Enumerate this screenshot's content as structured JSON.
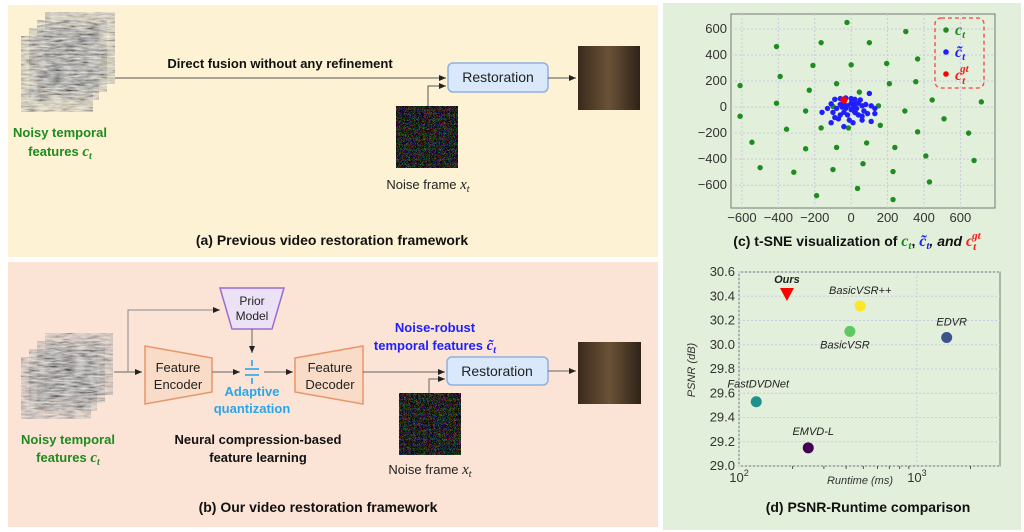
{
  "colors": {
    "panel_a_bg": "#fdf2d4",
    "panel_b_bg": "#fbe4d5",
    "panel_cd_bg": "#e2efda",
    "green": "#1f8a1f",
    "blue": "#1e1eff",
    "red": "#ff1a1a",
    "cyan": "#2aa6e8",
    "restoration_fill": "#dae8fc",
    "restoration_border": "#8eb0e0",
    "trap_fill": "#f8dcc8",
    "trap_border": "#e8956a",
    "prior_fill": "#ece2f6",
    "prior_border": "#9a6ed0"
  },
  "panel_a": {
    "fusion_label": "Direct fusion without any refinement",
    "restoration": "Restoration",
    "noisy_line1": "Noisy temporal",
    "noisy_line2": "features ",
    "math_c": "c",
    "math_t": "t",
    "math_x": "x",
    "noise_frame": "Noise frame ",
    "caption": "(a) Previous video restoration framework"
  },
  "panel_b": {
    "prior_line1": "Prior",
    "prior_line2": "Model",
    "encoder_line1": "Feature",
    "encoder_line2": "Encoder",
    "decoder_line1": "Feature",
    "decoder_line2": "Decoder",
    "aq_line1": "Adaptive",
    "aq_line2": "quantization",
    "robust_line1": "Noise-robust",
    "robust_line2": "temporal features ",
    "math_ctilde": "c̃",
    "restoration": "Restoration",
    "noisy_line1": "Noisy temporal",
    "noisy_line2": "features ",
    "ncb_line1": "Neural compression-based",
    "ncb_line2": "feature learning",
    "noise_frame": "Noise frame ",
    "caption": "(b) Our video restoration framework"
  },
  "chart_data": [
    {
      "type": "scatter",
      "title": "(c) t-SNE visualization of c_t, c̃_t, and c_t^gt",
      "caption_parts": {
        "prefix": "(c) t-SNE visualization of ",
        "c": "c",
        "t": "t",
        "sep": ", ",
        "ctilde": "c̃",
        "and": ", and ",
        "gt": "gt"
      },
      "xlim": [
        -660,
        790
      ],
      "ylim": [
        -775,
        715
      ],
      "xticks": [
        -600,
        -400,
        -200,
        0,
        200,
        400,
        600
      ],
      "yticks": [
        -600,
        -400,
        -200,
        0,
        200,
        400,
        600
      ],
      "grid": true,
      "legend": "top-right",
      "series": [
        {
          "name": "c_t",
          "color": "#1e8c1e",
          "points": [
            [
              -23,
              650
            ],
            [
              300,
              580
            ],
            [
              -410,
              465
            ],
            [
              -165,
              495
            ],
            [
              100,
              495
            ],
            [
              0,
              325
            ],
            [
              -210,
              320
            ],
            [
              195,
              335
            ],
            [
              365,
              370
            ],
            [
              -390,
              235
            ],
            [
              -610,
              165
            ],
            [
              -80,
              180
            ],
            [
              210,
              180
            ],
            [
              355,
              195
            ],
            [
              -230,
              130
            ],
            [
              45,
              115
            ],
            [
              -410,
              30
            ],
            [
              -100,
              5
            ],
            [
              150,
              10
            ],
            [
              715,
              40
            ],
            [
              445,
              55
            ],
            [
              -610,
              -70
            ],
            [
              -250,
              -30
            ],
            [
              25,
              -45
            ],
            [
              295,
              -30
            ],
            [
              510,
              -90
            ],
            [
              -15,
              -160
            ],
            [
              -355,
              -170
            ],
            [
              -165,
              -160
            ],
            [
              160,
              -140
            ],
            [
              365,
              -190
            ],
            [
              645,
              -200
            ],
            [
              -545,
              -270
            ],
            [
              -250,
              -320
            ],
            [
              -80,
              -310
            ],
            [
              85,
              -275
            ],
            [
              240,
              -310
            ],
            [
              410,
              -375
            ],
            [
              675,
              -410
            ],
            [
              -500,
              -465
            ],
            [
              -315,
              -500
            ],
            [
              -100,
              -480
            ],
            [
              65,
              -435
            ],
            [
              230,
              -495
            ],
            [
              430,
              -575
            ],
            [
              35,
              -625
            ],
            [
              -190,
              -680
            ],
            [
              230,
              -710
            ]
          ]
        },
        {
          "name": "c̃_t",
          "color": "#1e1eff",
          "points": [
            [
              -110,
              25
            ],
            [
              -90,
              60
            ],
            [
              -60,
              65
            ],
            [
              -30,
              70
            ],
            [
              0,
              65
            ],
            [
              20,
              60
            ],
            [
              50,
              55
            ],
            [
              100,
              105
            ],
            [
              -160,
              -40
            ],
            [
              -130,
              -10
            ],
            [
              -100,
              -40
            ],
            [
              -80,
              -10
            ],
            [
              -60,
              20
            ],
            [
              -40,
              30
            ],
            [
              -20,
              10
            ],
            [
              0,
              30
            ],
            [
              20,
              20
            ],
            [
              40,
              30
            ],
            [
              60,
              10
            ],
            [
              80,
              20
            ],
            [
              110,
              10
            ],
            [
              130,
              -10
            ],
            [
              -90,
              -80
            ],
            [
              -60,
              -60
            ],
            [
              -40,
              -40
            ],
            [
              -20,
              -60
            ],
            [
              0,
              -20
            ],
            [
              20,
              -40
            ],
            [
              40,
              -60
            ],
            [
              60,
              -70
            ],
            [
              90,
              -50
            ],
            [
              130,
              -50
            ],
            [
              -110,
              -120
            ],
            [
              -40,
              -150
            ],
            [
              -10,
              -100
            ],
            [
              10,
              -120
            ],
            [
              60,
              -100
            ],
            [
              110,
              -110
            ],
            [
              -70,
              -90
            ],
            [
              -30,
              -10
            ],
            [
              30,
              -10
            ],
            [
              70,
              -30
            ],
            [
              -50,
              0
            ],
            [
              10,
              0
            ]
          ]
        },
        {
          "name": "c_t^gt",
          "color": "#ff0000",
          "points": [
            [
              -40,
              55
            ]
          ]
        }
      ]
    },
    {
      "type": "scatter",
      "title": "(d) PSNR-Runtime comparison",
      "xlabel": "Runtime (ms)",
      "ylabel": "PSNR (dB)",
      "xscale": "log",
      "xlim": [
        100,
        2930
      ],
      "ylim": [
        29.0,
        30.6
      ],
      "yticks": [
        "29.0",
        "29.2",
        "29.4",
        "29.6",
        "29.8",
        "30.0",
        "30.2",
        "30.4",
        "30.6"
      ],
      "xticks": [
        {
          "base": "10",
          "exp": "2",
          "value": 100
        },
        {
          "base": "10",
          "exp": "3",
          "value": 1000
        }
      ],
      "grid": true,
      "points": [
        {
          "name": "Ours",
          "x": 186,
          "y": 30.41,
          "color": "#ff0000",
          "marker": "triangle-down",
          "bold": true
        },
        {
          "name": "BasicVSR++",
          "x": 480,
          "y": 30.32,
          "color": "#fde725"
        },
        {
          "name": "BasicVSR",
          "x": 420,
          "y": 30.11,
          "color": "#5ec962"
        },
        {
          "name": "EDVR",
          "x": 1470,
          "y": 30.06,
          "color": "#3b528b"
        },
        {
          "name": "FastDVDNet",
          "x": 125,
          "y": 29.53,
          "color": "#21918c"
        },
        {
          "name": "EMVD-L",
          "x": 245,
          "y": 29.15,
          "color": "#440154"
        }
      ]
    }
  ]
}
